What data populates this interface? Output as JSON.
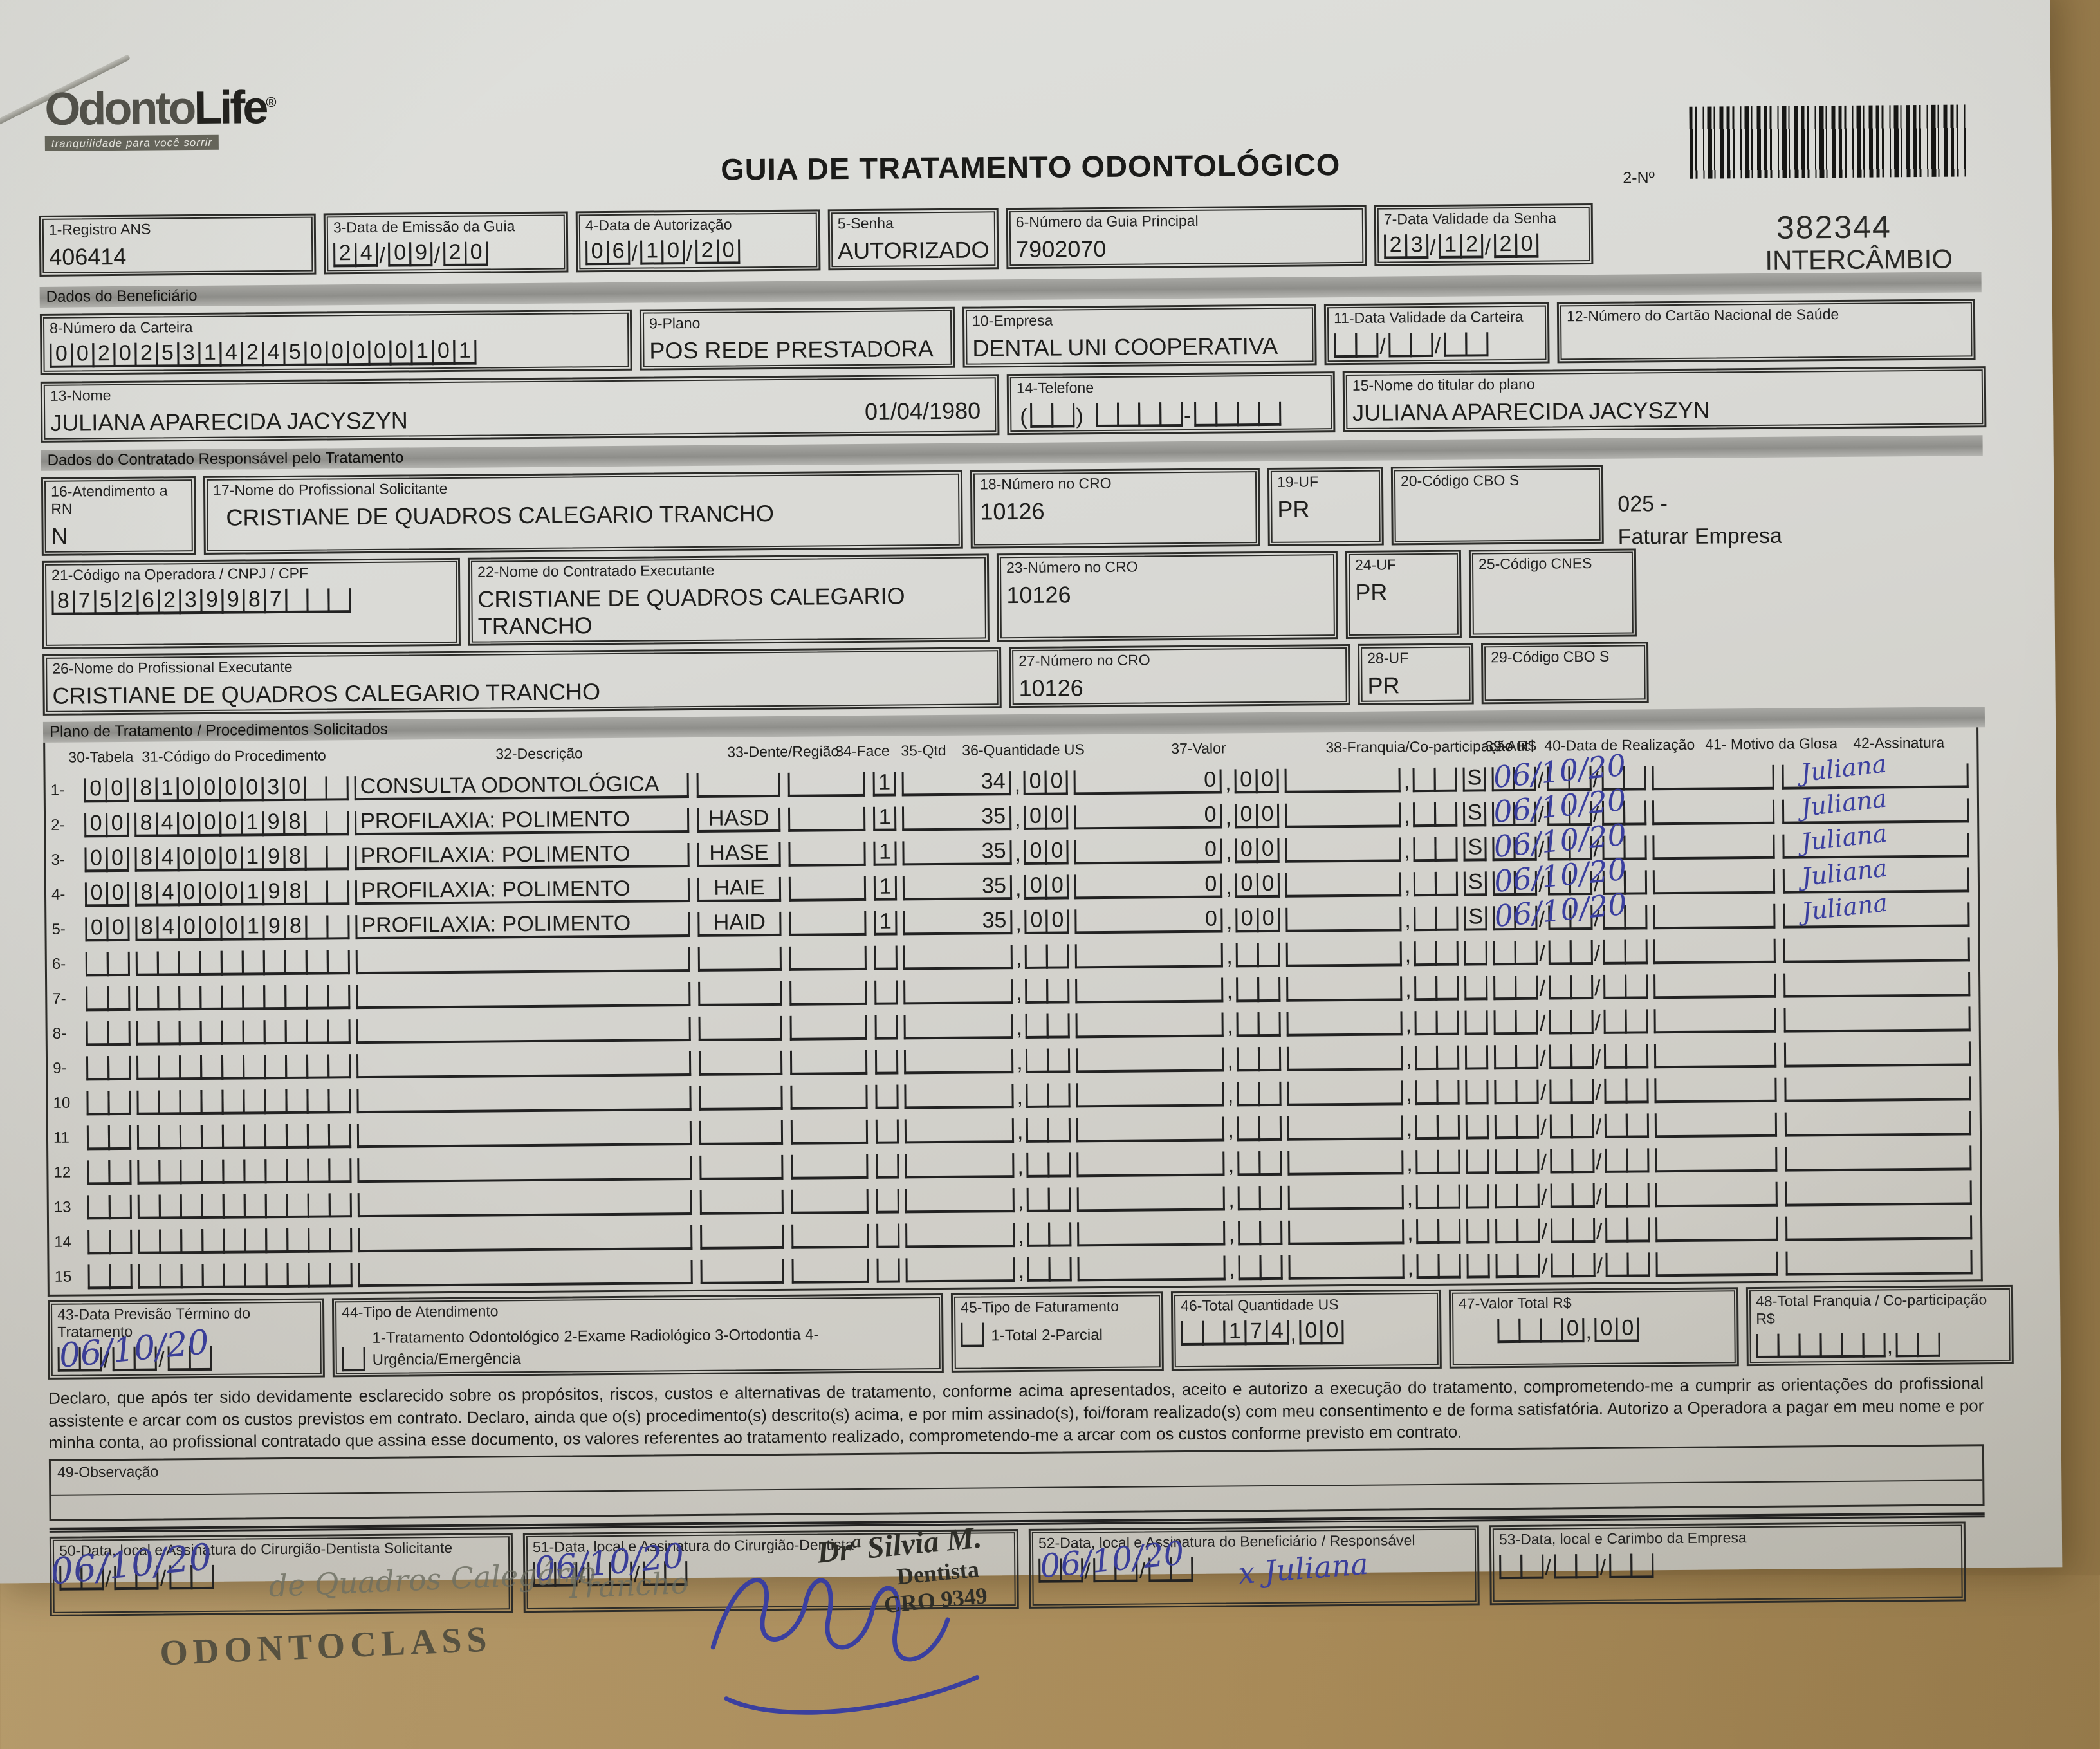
{
  "blank": "",
  "colors": {
    "ink_blue": "#3a3f9f",
    "paper": "#d8d8d4",
    "desk": "#a88a58",
    "stamp_gray": "#6c6e62"
  },
  "header": {
    "logo_part1": "Odonto",
    "logo_part2": "Life",
    "logo_reg": "®",
    "tagline": "tranquilidade para você sorrir",
    "title": "GUIA DE TRATAMENTO ODONTOLÓGICO",
    "barcode_label": "2-Nº",
    "guide_number": "382344",
    "guide_type": "INTERCÂMBIO"
  },
  "top": {
    "f1_label": "1-Registro ANS",
    "f1_value": "406414",
    "f3_label": "3-Data de Emissão da Guia",
    "f3_d": "24",
    "f3_m": "09",
    "f3_y": "20",
    "f4_label": "4-Data de Autorização",
    "f4_d": "06",
    "f4_m": "10",
    "f4_y": "20",
    "f5_label": "5-Senha",
    "f5_value": "AUTORIZADO",
    "f6_label": "6-Número da Guia Principal",
    "f6_value": "7902070",
    "f7_label": "7-Data Validade da Senha",
    "f7_d": "23",
    "f7_m": "12",
    "f7_y": "20"
  },
  "beneficiario": {
    "section_title": "Dados do Beneficiário",
    "f8_label": "8-Número da Carteira",
    "f8_value": "00202531424500000101",
    "f9_label": "9-Plano",
    "f9_value": "POS REDE PRESTADORA",
    "f10_label": "10-Empresa",
    "f10_value": "DENTAL UNI  COOPERATIVA",
    "f11_label": "11-Data Validade da Carteira",
    "f12_label": "12-Número do Cartão Nacional de Saúde",
    "f13_label": "13-Nome",
    "f13_value": "JULIANA APARECIDA JACYSZYN",
    "f13_birthdate": "01/04/1980",
    "f14_label": "14-Telefone",
    "f15_label": "15-Nome do titular do plano",
    "f15_value": "JULIANA APARECIDA JACYSZYN"
  },
  "contratado": {
    "section_title": "Dados do Contratado Responsável pelo Tratamento",
    "f16_label": "16-Atendimento a RN",
    "f16_value": "N",
    "f17_label": "17-Nome do Profissional Solicitante",
    "f17_value": "CRISTIANE DE QUADROS CALEGARIO TRANCHO",
    "f18_label": "18-Número no CRO",
    "f18_value": "10126",
    "f19_label": "19-UF",
    "f19_value": "PR",
    "f20_label": "20-Código CBO S",
    "note_line1": "025 -",
    "note_line2": "Faturar Empresa",
    "f21_label": "21-Código na Operadora / CNPJ / CPF",
    "f21_value": "87526239987",
    "f22_label": "22-Nome do Contratado Executante",
    "f22_value": "CRISTIANE DE QUADROS CALEGARIO TRANCHO",
    "f23_label": "23-Número no CRO",
    "f23_value": "10126",
    "f24_label": "24-UF",
    "f24_value": "PR",
    "f25_label": "25-Código CNES",
    "f26_label": "26-Nome do Profissional Executante",
    "f26_value": "CRISTIANE DE QUADROS CALEGARIO TRANCHO",
    "f27_label": "27-Número no CRO",
    "f27_value": "10126",
    "f28_label": "28-UF",
    "f28_value": "PR",
    "f29_label": "29-Código CBO S"
  },
  "treatment": {
    "section_title": "Plano de Tratamento / Procedimentos Solicitados",
    "h30": "30-Tabela",
    "h31": "31-Código do Procedimento",
    "h32": "32-Descrição",
    "h33": "33-Dente/Região",
    "h34": "34-Face",
    "h35": "35-Qtd",
    "h36": "36-Quantidade US",
    "h37": "37-Valor",
    "h38": "38-Franquia/Co-participação R$",
    "h39": "39-Aut",
    "h40": "40-Data de Realização",
    "h41": "41- Motivo da Glosa",
    "h42": "42-Assinatura",
    "rows": [
      {
        "num": "1-",
        "tabela": "00",
        "codigo": "81000030",
        "desc": "CONSULTA ODONTOLÓGICA",
        "dente": "",
        "qtd": "1",
        "us": "34",
        "usd": "00",
        "val": "0",
        "vald": "00",
        "aut": "S",
        "hw_date": "06/10/20",
        "sig": "Juliana"
      },
      {
        "num": "2-",
        "tabela": "00",
        "codigo": "84000198",
        "desc": "PROFILAXIA: POLIMENTO",
        "dente": "HASD",
        "qtd": "1",
        "us": "35",
        "usd": "00",
        "val": "0",
        "vald": "00",
        "aut": "S",
        "hw_date": "06/10/20",
        "sig": "Juliana"
      },
      {
        "num": "3-",
        "tabela": "00",
        "codigo": "84000198",
        "desc": "PROFILAXIA: POLIMENTO",
        "dente": "HASE",
        "qtd": "1",
        "us": "35",
        "usd": "00",
        "val": "0",
        "vald": "00",
        "aut": "S",
        "hw_date": "06/10/20",
        "sig": "Juliana"
      },
      {
        "num": "4-",
        "tabela": "00",
        "codigo": "84000198",
        "desc": "PROFILAXIA: POLIMENTO",
        "dente": "HAIE",
        "qtd": "1",
        "us": "35",
        "usd": "00",
        "val": "0",
        "vald": "00",
        "aut": "S",
        "hw_date": "06/10/20",
        "sig": "Juliana"
      },
      {
        "num": "5-",
        "tabela": "00",
        "codigo": "84000198",
        "desc": "PROFILAXIA: POLIMENTO",
        "dente": "HAID",
        "qtd": "1",
        "us": "35",
        "usd": "00",
        "val": "0",
        "vald": "00",
        "aut": "S",
        "hw_date": "06/10/20",
        "sig": "Juliana"
      },
      {
        "num": "6-",
        "tabela": "",
        "codigo": "",
        "desc": "",
        "dente": "",
        "qtd": "",
        "us": "",
        "usd": "",
        "val": "",
        "vald": "",
        "aut": "",
        "hw_date": "",
        "sig": ""
      },
      {
        "num": "7-",
        "tabela": "",
        "codigo": "",
        "desc": "",
        "dente": "",
        "qtd": "",
        "us": "",
        "usd": "",
        "val": "",
        "vald": "",
        "aut": "",
        "hw_date": "",
        "sig": ""
      },
      {
        "num": "8-",
        "tabela": "",
        "codigo": "",
        "desc": "",
        "dente": "",
        "qtd": "",
        "us": "",
        "usd": "",
        "val": "",
        "vald": "",
        "aut": "",
        "hw_date": "",
        "sig": ""
      },
      {
        "num": "9-",
        "tabela": "",
        "codigo": "",
        "desc": "",
        "dente": "",
        "qtd": "",
        "us": "",
        "usd": "",
        "val": "",
        "vald": "",
        "aut": "",
        "hw_date": "",
        "sig": ""
      },
      {
        "num": "10",
        "tabela": "",
        "codigo": "",
        "desc": "",
        "dente": "",
        "qtd": "",
        "us": "",
        "usd": "",
        "val": "",
        "vald": "",
        "aut": "",
        "hw_date": "",
        "sig": ""
      },
      {
        "num": "11",
        "tabela": "",
        "codigo": "",
        "desc": "",
        "dente": "",
        "qtd": "",
        "us": "",
        "usd": "",
        "val": "",
        "vald": "",
        "aut": "",
        "hw_date": "",
        "sig": ""
      },
      {
        "num": "12",
        "tabela": "",
        "codigo": "",
        "desc": "",
        "dente": "",
        "qtd": "",
        "us": "",
        "usd": "",
        "val": "",
        "vald": "",
        "aut": "",
        "hw_date": "",
        "sig": ""
      },
      {
        "num": "13",
        "tabela": "",
        "codigo": "",
        "desc": "",
        "dente": "",
        "qtd": "",
        "us": "",
        "usd": "",
        "val": "",
        "vald": "",
        "aut": "",
        "hw_date": "",
        "sig": ""
      },
      {
        "num": "14",
        "tabela": "",
        "codigo": "",
        "desc": "",
        "dente": "",
        "qtd": "",
        "us": "",
        "usd": "",
        "val": "",
        "vald": "",
        "aut": "",
        "hw_date": "",
        "sig": ""
      },
      {
        "num": "15",
        "tabela": "",
        "codigo": "",
        "desc": "",
        "dente": "",
        "qtd": "",
        "us": "",
        "usd": "",
        "val": "",
        "vald": "",
        "aut": "",
        "hw_date": "",
        "sig": ""
      }
    ]
  },
  "totals": {
    "f43_label": "43-Data Previsão Término do Tratamento",
    "f43_hw": "06/10/20",
    "f44_label": "44-Tipo de Atendimento",
    "f44_options": "1-Tratamento Odontológico  2-Exame Radiológico  3-Ortodontia  4-Urgência/Emergência",
    "f45_label": "45-Tipo de Faturamento",
    "f45_options": "1-Total  2-Parcial",
    "f46_label": "46-Total Quantidade US",
    "f46_int": "  174",
    "f46_dec": "00",
    "f47_label": "47-Valor Total R$",
    "f47_int": "   0",
    "f47_dec": "00",
    "f48_label": "48-Total Franquia / Co-participação R$"
  },
  "declaration": "Declaro, que após ter sido devidamente esclarecido sobre os propósitos, riscos, custos e alternativas de tratamento, conforme acima apresentados, aceito e autorizo a execução do tratamento, comprometendo-me a cumprir as orientações do profissional assistente e arcar com os custos previstos em contrato. Declaro, ainda que o(s) procedimento(s) descrito(s) acima, e por mim assinado(s), foi/foram realizado(s) com meu consentimento e de forma satisfatória. Autorizo a Operadora a pagar em meu nome e por minha conta, ao profissional contratado que assina esse documento, os valores referentes ao tratamento realizado, comprometendo-me a arcar com os custos conforme previsto em contrato.",
  "observation": {
    "label": "49-Observação"
  },
  "signatures": {
    "f50_label": "50-Data, local e Assinatura do Cirurgião-Dentista Solicitante",
    "f50_hw_date": "06/10/20",
    "f50_stamp_script": "de Quadros Calegário",
    "f50_stamp": "ODONTOCLASS",
    "f51_label": "51-Data, local e Assinatura do Cirurgião-Dentista",
    "f51_hw_date": "06/10/20",
    "f51_stamp_script": "Trancho",
    "f51_stamp_line1": "Drª Silvia M.",
    "f51_stamp_line2": "Dentista",
    "f51_stamp_line3": "CRO 9349",
    "f52_label": "52-Data, local e Assinatura do Beneficiário / Responsável",
    "f52_hw_date": "06/10/20",
    "f52_hw_sig": "x Juliana",
    "f53_label": "53-Data, local e Carimbo da Empresa"
  }
}
